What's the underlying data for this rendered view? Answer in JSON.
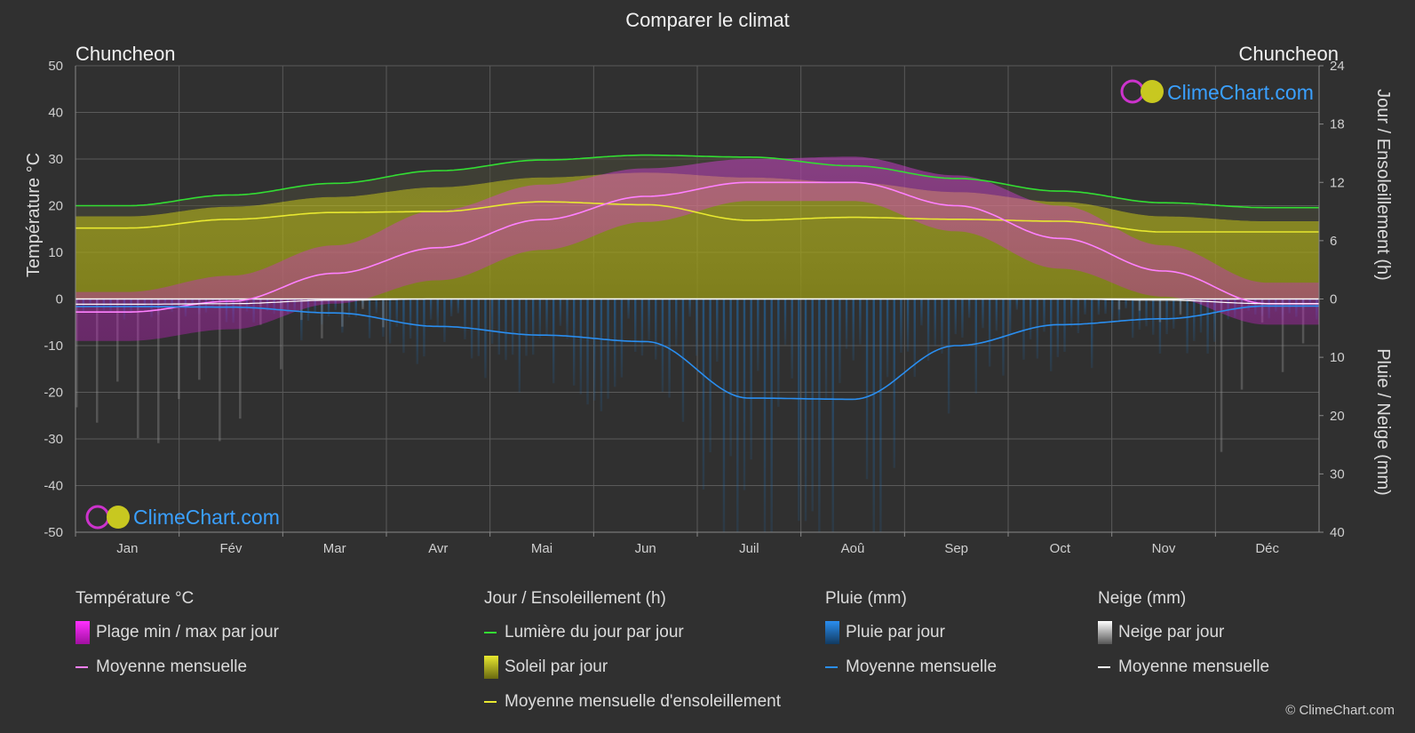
{
  "title": "Comparer le climat",
  "location_left": "Chuncheon",
  "location_right": "Chuncheon",
  "left_axis_label": "Température °C",
  "right_axis_label_top": "Jour / Ensoleillement (h)",
  "right_axis_label_bottom": "Pluie / Neige (mm)",
  "watermark": "ClimeChart.com",
  "copyright": "© ClimeChart.com",
  "colors": {
    "background": "#303030",
    "temp_range": "#e020e0",
    "temp_mean": "#ff80ff",
    "daylight": "#33dd33",
    "sunshine": "#c8c820",
    "sunshine_mean": "#e8e830",
    "rain": "#1e78c8",
    "rain_mean": "#2a8ef0",
    "snow": "#cccccc",
    "snow_mean": "#ffffff",
    "brand": "#3aa0ff"
  },
  "legend": {
    "temperature": {
      "title": "Température °C",
      "range": "Plage min / max par jour",
      "mean": "Moyenne mensuelle"
    },
    "sun": {
      "title": "Jour / Ensoleillement (h)",
      "daylight": "Lumière du jour par jour",
      "sunshine": "Soleil par jour",
      "sunshine_mean": "Moyenne mensuelle d'ensoleillement"
    },
    "rain": {
      "title": "Pluie (mm)",
      "daily": "Pluie par jour",
      "mean": "Moyenne mensuelle"
    },
    "snow": {
      "title": "Neige (mm)",
      "daily": "Neige par jour",
      "mean": "Moyenne mensuelle"
    }
  },
  "chart_data": {
    "type": "area",
    "months": [
      "Jan",
      "Fév",
      "Mar",
      "Avr",
      "Mai",
      "Jun",
      "Juil",
      "Aoû",
      "Sep",
      "Oct",
      "Nov",
      "Déc"
    ],
    "left_axis": {
      "label": "Température °C",
      "range": [
        -50,
        50
      ],
      "ticks": [
        50,
        40,
        30,
        20,
        10,
        0,
        -10,
        -20,
        -30,
        -40,
        -50
      ]
    },
    "right_axis_top": {
      "label": "Jour / Ensoleillement (h)",
      "range": [
        0,
        24
      ],
      "ticks": [
        24,
        18,
        12,
        6,
        0
      ]
    },
    "right_axis_bottom": {
      "label": "Pluie / Neige (mm)",
      "range": [
        0,
        40
      ],
      "ticks": [
        0,
        10,
        20,
        30,
        40
      ]
    },
    "grid": true,
    "series": [
      {
        "name": "Moyenne mensuelle",
        "unit": "°C",
        "values": [
          -2.8,
          -0.5,
          5.5,
          11.0,
          17.0,
          22.0,
          25.0,
          25.0,
          20.0,
          13.0,
          6.0,
          -1.0
        ]
      },
      {
        "name": "Plage min / max par jour (max)",
        "unit": "°C",
        "values": [
          1.5,
          5.0,
          11.5,
          19.0,
          24.5,
          28.0,
          30.0,
          30.5,
          26.5,
          20.0,
          11.5,
          3.5
        ]
      },
      {
        "name": "Plage min / max par jour (min)",
        "unit": "°C",
        "values": [
          -9.0,
          -6.5,
          -1.0,
          4.0,
          10.5,
          16.5,
          21.0,
          21.0,
          14.5,
          6.5,
          0.5,
          -5.5
        ]
      },
      {
        "name": "Lumière du jour par jour",
        "unit": "h",
        "values": [
          9.6,
          10.7,
          11.9,
          13.2,
          14.3,
          14.8,
          14.6,
          13.7,
          12.4,
          11.1,
          9.9,
          9.4
        ]
      },
      {
        "name": "Soleil par jour",
        "unit": "h",
        "values": [
          8.5,
          9.5,
          10.5,
          11.5,
          12.5,
          13.0,
          12.5,
          12.0,
          11.0,
          10.0,
          8.5,
          8.0
        ]
      },
      {
        "name": "Moyenne mensuelle d'ensoleillement",
        "unit": "h",
        "values": [
          7.3,
          8.2,
          8.9,
          9.0,
          10.0,
          9.7,
          8.1,
          8.4,
          8.2,
          8.0,
          6.9,
          6.9
        ]
      },
      {
        "name": "Pluie Moyenne mensuelle",
        "unit": "mm",
        "values": [
          1.3,
          1.4,
          2.4,
          4.7,
          6.2,
          7.3,
          17.0,
          17.2,
          8.0,
          4.4,
          3.4,
          1.2
        ]
      },
      {
        "name": "Neige Moyenne mensuelle",
        "unit": "mm",
        "values": [
          0.9,
          0.8,
          0.2,
          0.0,
          0.0,
          0.0,
          0.0,
          0.0,
          0.0,
          0.0,
          0.2,
          0.8
        ]
      }
    ]
  }
}
